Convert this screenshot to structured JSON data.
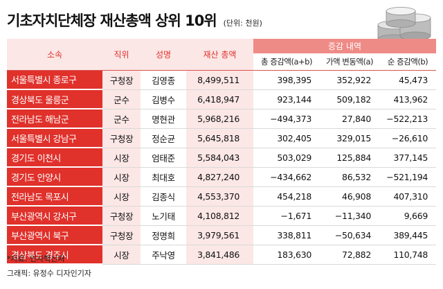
{
  "title": "기초자치단체장 재산총액 상위 10위",
  "unit": "(단위: 천원)",
  "headers": {
    "region": "소속",
    "position": "직위",
    "name": "성명",
    "assets": "재산 총액",
    "change_group": "증감 내역",
    "total_change": "총 증감액(a+b)",
    "value_change": "가액 변동액(a)",
    "net_change": "순 증감액(b)"
  },
  "rows": [
    {
      "region": "서울특별시 종로구",
      "position": "구청장",
      "name": "김영종",
      "assets": "8,499,511",
      "total": "398,395",
      "value": "352,922",
      "net": "45,473"
    },
    {
      "region": "경상북도 울릉군",
      "position": "군수",
      "name": "김병수",
      "assets": "6,418,947",
      "total": "923,144",
      "value": "509,182",
      "net": "413,962"
    },
    {
      "region": "전라남도 해남군",
      "position": "군수",
      "name": "명현관",
      "assets": "5,968,216",
      "total": "−494,373",
      "value": "27,840",
      "net": "−522,213"
    },
    {
      "region": "서울특별시 강남구",
      "position": "구청장",
      "name": "정순균",
      "assets": "5,645,818",
      "total": "302,405",
      "value": "329,015",
      "net": "−26,610"
    },
    {
      "region": "경기도 이천시",
      "position": "시장",
      "name": "엄태준",
      "assets": "5,584,043",
      "total": "503,029",
      "value": "125,884",
      "net": "377,145"
    },
    {
      "region": "경기도 안양시",
      "position": "시장",
      "name": "최대호",
      "assets": "4,827,240",
      "total": "−434,662",
      "value": "86,532",
      "net": "−521,194"
    },
    {
      "region": "전라남도 목포시",
      "position": "시장",
      "name": "김종식",
      "assets": "4,553,370",
      "total": "454,218",
      "value": "46,908",
      "net": "407,310"
    },
    {
      "region": "부산광역시 강서구",
      "position": "구청장",
      "name": "노기태",
      "assets": "4,108,812",
      "total": "−1,671",
      "value": "−11,340",
      "net": "9,669"
    },
    {
      "region": "부산광역시 북구",
      "position": "구청장",
      "name": "정명희",
      "assets": "3,979,561",
      "total": "338,811",
      "value": "−50,634",
      "net": "389,445"
    },
    {
      "region": "경상북도 경주시",
      "position": "시장",
      "name": "주낙영",
      "assets": "3,841,486",
      "total": "183,630",
      "value": "72,882",
      "net": "110,748"
    }
  ],
  "footer": {
    "source": "*자료: 인사혁신처",
    "credit": "그래픽: 유정수 디자인기자"
  },
  "colors": {
    "accent": "#e0312b",
    "light": "#fbe7e6",
    "header_group": "#ef8b86"
  },
  "decor_icon": "coin-stack-icon"
}
